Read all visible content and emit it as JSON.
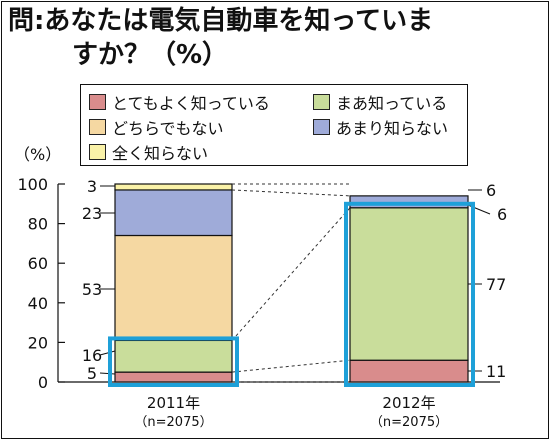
{
  "title_line1": "問:あなたは電気自動車を知っていま",
  "title_line2": "すか？（%）",
  "chart_data": {
    "type": "bar",
    "stacked": true,
    "unit_label": "（%）",
    "ylim": [
      0,
      100
    ],
    "yticks": [
      0,
      20,
      40,
      60,
      80,
      100
    ],
    "categories": [
      {
        "label": "2011年",
        "sample": "（n=2075）"
      },
      {
        "label": "2012年",
        "sample": "（n=2075）"
      }
    ],
    "series": [
      {
        "name": "とてもよく知っている",
        "color": "#d98c8c",
        "values": [
          5,
          11
        ],
        "labels": [
          "5",
          "11"
        ]
      },
      {
        "name": "まあ知っている",
        "color": "#c9dd9b",
        "values": [
          16,
          77
        ],
        "labels": [
          "16",
          "77"
        ]
      },
      {
        "name": "どちらでもない",
        "color": "#f5d8a2",
        "values": [
          53,
          0
        ],
        "labels": [
          "53",
          ""
        ]
      },
      {
        "name": "あまり知らない",
        "color": "#9fabd9",
        "values": [
          23,
          6
        ],
        "labels": [
          "23",
          "6"
        ]
      },
      {
        "name": "全く知らない",
        "color": "#faf2a8",
        "values": [
          3,
          0
        ],
        "labels": [
          "3",
          ""
        ]
      }
    ],
    "extra_labels": [
      {
        "category": 1,
        "text": "6"
      }
    ],
    "highlight_color": "#1ea0d8",
    "legend_placement": "top"
  }
}
